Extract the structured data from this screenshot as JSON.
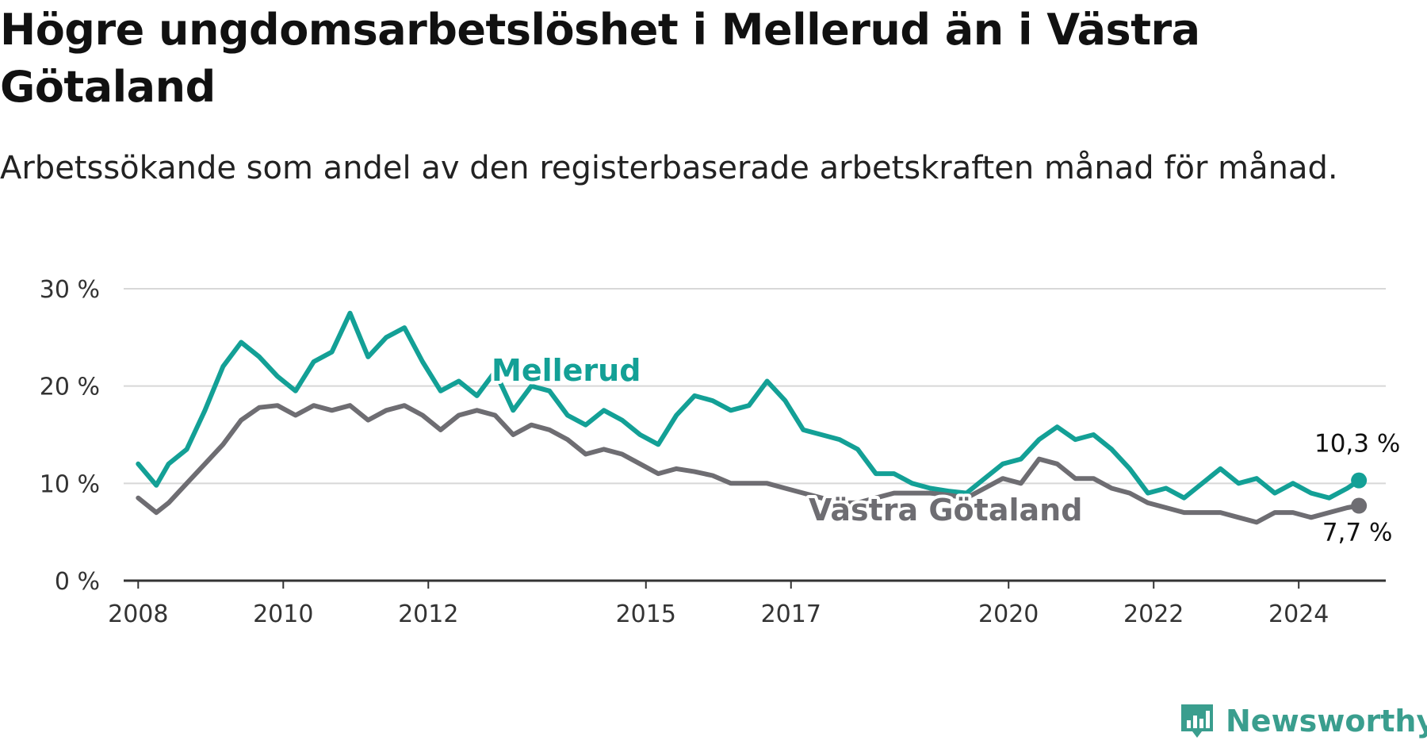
{
  "title": "Högre ungdomsarbetslöshet i Mellerud än i Västra Götaland",
  "subtitle": "Arbetssökande som andel av den registerbaserade arbetskraften månad för månad.",
  "brand": {
    "name": "Newsworthy",
    "color": "#3a9e8e"
  },
  "chart_data": {
    "type": "line",
    "y_ticks": [
      "0 %",
      "10 %",
      "20 %",
      "30 %"
    ],
    "ylim": [
      0,
      30
    ],
    "x_ticks": [
      "2008",
      "2010",
      "2012",
      "2015",
      "2017",
      "2020",
      "2022",
      "2024"
    ],
    "xlim": [
      2007.8,
      2025.2
    ],
    "grid": true,
    "series": [
      {
        "name": "Mellerud",
        "color": "#13a096",
        "end_label": "10,3 %",
        "points": [
          [
            2008.0,
            12.0
          ],
          [
            2008.25,
            9.8
          ],
          [
            2008.42,
            12.0
          ],
          [
            2008.67,
            13.5
          ],
          [
            2008.92,
            17.5
          ],
          [
            2009.17,
            22.0
          ],
          [
            2009.42,
            24.5
          ],
          [
            2009.67,
            23.0
          ],
          [
            2009.92,
            21.0
          ],
          [
            2010.17,
            19.5
          ],
          [
            2010.42,
            22.5
          ],
          [
            2010.67,
            23.5
          ],
          [
            2010.92,
            27.5
          ],
          [
            2011.17,
            23.0
          ],
          [
            2011.42,
            25.0
          ],
          [
            2011.67,
            26.0
          ],
          [
            2011.92,
            22.5
          ],
          [
            2012.17,
            19.5
          ],
          [
            2012.42,
            20.5
          ],
          [
            2012.67,
            19.0
          ],
          [
            2012.92,
            21.5
          ],
          [
            2013.17,
            17.5
          ],
          [
            2013.42,
            20.0
          ],
          [
            2013.67,
            19.5
          ],
          [
            2013.92,
            17.0
          ],
          [
            2014.17,
            16.0
          ],
          [
            2014.42,
            17.5
          ],
          [
            2014.67,
            16.5
          ],
          [
            2014.92,
            15.0
          ],
          [
            2015.17,
            14.0
          ],
          [
            2015.42,
            17.0
          ],
          [
            2015.67,
            19.0
          ],
          [
            2015.92,
            18.5
          ],
          [
            2016.17,
            17.5
          ],
          [
            2016.42,
            18.0
          ],
          [
            2016.67,
            20.5
          ],
          [
            2016.92,
            18.5
          ],
          [
            2017.17,
            15.5
          ],
          [
            2017.42,
            15.0
          ],
          [
            2017.67,
            14.5
          ],
          [
            2017.92,
            13.5
          ],
          [
            2018.17,
            11.0
          ],
          [
            2018.42,
            11.0
          ],
          [
            2018.67,
            10.0
          ],
          [
            2018.92,
            9.5
          ],
          [
            2019.17,
            9.2
          ],
          [
            2019.42,
            9.0
          ],
          [
            2019.67,
            10.5
          ],
          [
            2019.92,
            12.0
          ],
          [
            2020.17,
            12.5
          ],
          [
            2020.42,
            14.5
          ],
          [
            2020.67,
            15.8
          ],
          [
            2020.92,
            14.5
          ],
          [
            2021.17,
            15.0
          ],
          [
            2021.42,
            13.5
          ],
          [
            2021.67,
            11.5
          ],
          [
            2021.92,
            9.0
          ],
          [
            2022.17,
            9.5
          ],
          [
            2022.42,
            8.5
          ],
          [
            2022.67,
            10.0
          ],
          [
            2022.92,
            11.5
          ],
          [
            2023.17,
            10.0
          ],
          [
            2023.42,
            10.5
          ],
          [
            2023.67,
            9.0
          ],
          [
            2023.92,
            10.0
          ],
          [
            2024.17,
            9.0
          ],
          [
            2024.42,
            8.5
          ],
          [
            2024.67,
            9.5
          ],
          [
            2024.83,
            10.3
          ]
        ]
      },
      {
        "name": "Västra Götaland",
        "color": "#6e6d72",
        "end_label": "7,7 %",
        "points": [
          [
            2008.0,
            8.5
          ],
          [
            2008.25,
            7.0
          ],
          [
            2008.42,
            8.0
          ],
          [
            2008.67,
            10.0
          ],
          [
            2008.92,
            12.0
          ],
          [
            2009.17,
            14.0
          ],
          [
            2009.42,
            16.5
          ],
          [
            2009.67,
            17.8
          ],
          [
            2009.92,
            18.0
          ],
          [
            2010.17,
            17.0
          ],
          [
            2010.42,
            18.0
          ],
          [
            2010.67,
            17.5
          ],
          [
            2010.92,
            18.0
          ],
          [
            2011.17,
            16.5
          ],
          [
            2011.42,
            17.5
          ],
          [
            2011.67,
            18.0
          ],
          [
            2011.92,
            17.0
          ],
          [
            2012.17,
            15.5
          ],
          [
            2012.42,
            17.0
          ],
          [
            2012.67,
            17.5
          ],
          [
            2012.92,
            17.0
          ],
          [
            2013.17,
            15.0
          ],
          [
            2013.42,
            16.0
          ],
          [
            2013.67,
            15.5
          ],
          [
            2013.92,
            14.5
          ],
          [
            2014.17,
            13.0
          ],
          [
            2014.42,
            13.5
          ],
          [
            2014.67,
            13.0
          ],
          [
            2014.92,
            12.0
          ],
          [
            2015.17,
            11.0
          ],
          [
            2015.42,
            11.5
          ],
          [
            2015.67,
            11.2
          ],
          [
            2015.92,
            10.8
          ],
          [
            2016.17,
            10.0
          ],
          [
            2016.42,
            10.0
          ],
          [
            2016.67,
            10.0
          ],
          [
            2016.92,
            9.5
          ],
          [
            2017.17,
            9.0
          ],
          [
            2017.42,
            8.5
          ],
          [
            2017.67,
            8.0
          ],
          [
            2017.92,
            8.0
          ],
          [
            2018.17,
            8.5
          ],
          [
            2018.42,
            9.0
          ],
          [
            2018.67,
            9.0
          ],
          [
            2018.92,
            9.0
          ],
          [
            2019.17,
            8.8
          ],
          [
            2019.42,
            8.5
          ],
          [
            2019.67,
            9.5
          ],
          [
            2019.92,
            10.5
          ],
          [
            2020.17,
            10.0
          ],
          [
            2020.42,
            12.5
          ],
          [
            2020.67,
            12.0
          ],
          [
            2020.92,
            10.5
          ],
          [
            2021.17,
            10.5
          ],
          [
            2021.42,
            9.5
          ],
          [
            2021.67,
            9.0
          ],
          [
            2021.92,
            8.0
          ],
          [
            2022.17,
            7.5
          ],
          [
            2022.42,
            7.0
          ],
          [
            2022.67,
            7.0
          ],
          [
            2022.92,
            7.0
          ],
          [
            2023.17,
            6.5
          ],
          [
            2023.42,
            6.0
          ],
          [
            2023.67,
            7.0
          ],
          [
            2023.92,
            7.0
          ],
          [
            2024.17,
            6.5
          ],
          [
            2024.42,
            7.0
          ],
          [
            2024.67,
            7.5
          ],
          [
            2024.83,
            7.7
          ]
        ]
      }
    ]
  }
}
